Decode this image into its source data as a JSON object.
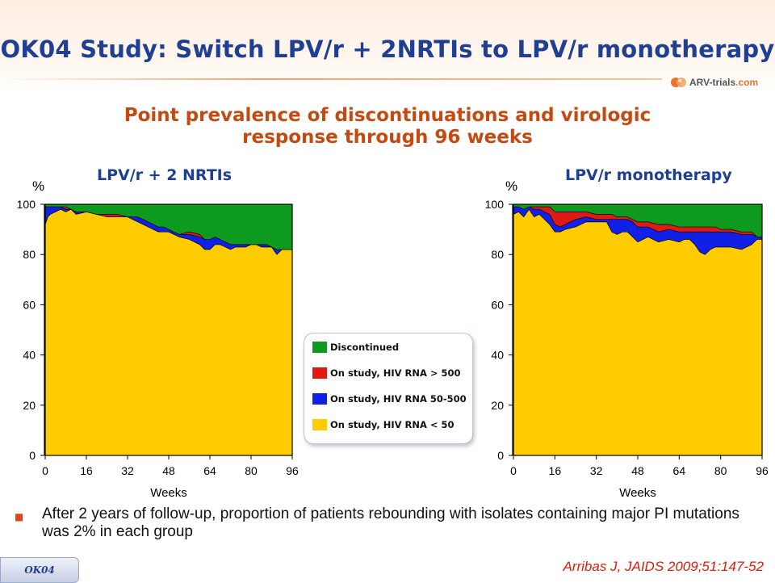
{
  "title": "OK04 Study: Switch LPV/r + 2NRTIs to LPV/r monotherapy",
  "logo": {
    "text_main": "ARV-trials",
    "text_accent": ".com"
  },
  "subtitle": {
    "line1": "Point prevalence of discontinuations and virologic",
    "line2": "response through 96 weeks"
  },
  "panels": [
    {
      "title": "LPV/r + 2 NRTIs"
    },
    {
      "title": "LPV/r monotherapy"
    }
  ],
  "legend": [
    {
      "label": "Discontinued",
      "color": "#0e9a1e"
    },
    {
      "label": "On study, HIV RNA > 500",
      "color": "#e01a12"
    },
    {
      "label": "On study, HIV RNA 50-500",
      "color": "#1020e6"
    },
    {
      "label": "On study, HIV RNA < 50",
      "color": "#ffcc00"
    }
  ],
  "bullet": "After 2 years of follow-up, proportion of patients rebounding with isolates containing major PI mutations was 2% in each group",
  "tag": "OK04",
  "citation": "Arribas J, JAIDS 2009;51:147-52",
  "chart_data": [
    {
      "type": "area",
      "title": "LPV/r + 2 NRTIs",
      "xlabel": "Weeks",
      "ylabel": "%",
      "xlim": [
        0,
        96
      ],
      "ylim": [
        0,
        100
      ],
      "xticks": [
        0,
        16,
        32,
        48,
        64,
        80,
        96
      ],
      "yticks": [
        0,
        20,
        40,
        60,
        80,
        100
      ],
      "stacked": true,
      "x": [
        0,
        1,
        2,
        4,
        6,
        8,
        10,
        12,
        16,
        20,
        24,
        28,
        32,
        36,
        38,
        40,
        42,
        44,
        46,
        48,
        52,
        56,
        60,
        62,
        64,
        66,
        68,
        70,
        72,
        74,
        76,
        78,
        80,
        82,
        84,
        86,
        88,
        90,
        92,
        96
      ],
      "series": [
        {
          "name": "On study, HIV RNA < 50",
          "values": [
            92,
            95,
            96,
            97,
            98,
            97,
            98,
            96,
            97,
            96,
            95,
            95,
            95,
            93,
            92,
            91,
            90,
            89,
            89,
            89,
            87,
            86,
            84,
            82,
            82,
            84,
            84,
            83,
            82,
            83,
            83,
            83,
            84,
            84,
            83,
            83,
            83,
            80,
            82,
            82
          ]
        },
        {
          "name": "On study, HIV RNA 50-500",
          "values": [
            7,
            4,
            3,
            2,
            1,
            1,
            0,
            1,
            0,
            0,
            0,
            0,
            0,
            2,
            2,
            2,
            2,
            2,
            2,
            1,
            1,
            2,
            3,
            4,
            4,
            3,
            2,
            2,
            2,
            1,
            1,
            1,
            0,
            0,
            1,
            1,
            0,
            2,
            0,
            0
          ]
        },
        {
          "name": "On study, HIV RNA > 500",
          "values": [
            0,
            0,
            0,
            0,
            0,
            1,
            0,
            0,
            0,
            0,
            1,
            1,
            0,
            0,
            0,
            0,
            0,
            0,
            0,
            0,
            0,
            1,
            1,
            0,
            0,
            0,
            0,
            0,
            0,
            0,
            0,
            0,
            0,
            0,
            0,
            0,
            0,
            0,
            0,
            0
          ]
        },
        {
          "name": "Discontinued",
          "values": [
            1,
            1,
            1,
            1,
            1,
            1,
            2,
            3,
            3,
            4,
            4,
            4,
            5,
            5,
            6,
            7,
            8,
            9,
            9,
            10,
            12,
            11,
            12,
            14,
            14,
            13,
            14,
            15,
            16,
            16,
            16,
            16,
            16,
            16,
            16,
            16,
            17,
            18,
            18,
            18
          ]
        }
      ]
    },
    {
      "type": "area",
      "title": "LPV/r monotherapy",
      "xlabel": "Weeks",
      "ylabel": "%",
      "xlim": [
        0,
        96
      ],
      "ylim": [
        0,
        100
      ],
      "xticks": [
        0,
        16,
        32,
        48,
        64,
        80,
        96
      ],
      "yticks": [
        0,
        20,
        40,
        60,
        80,
        100
      ],
      "stacked": true,
      "x": [
        0,
        2,
        4,
        6,
        8,
        10,
        12,
        14,
        16,
        18,
        20,
        24,
        28,
        32,
        36,
        38,
        40,
        42,
        44,
        46,
        48,
        50,
        52,
        56,
        60,
        64,
        66,
        68,
        70,
        72,
        74,
        76,
        78,
        80,
        84,
        88,
        92,
        94,
        96
      ],
      "series": [
        {
          "name": "On study, HIV RNA < 50",
          "values": [
            96,
            97,
            95,
            98,
            95,
            96,
            94,
            92,
            89,
            89,
            90,
            91,
            93,
            93,
            93,
            89,
            88,
            89,
            89,
            87,
            85,
            86,
            87,
            85,
            86,
            85,
            86,
            86,
            84,
            81,
            80,
            82,
            83,
            83,
            83,
            82,
            84,
            86,
            86
          ]
        },
        {
          "name": "On study, HIV RNA 50-500",
          "values": [
            3,
            2,
            3,
            1,
            3,
            2,
            3,
            4,
            3,
            2,
            2,
            3,
            2,
            1,
            1,
            5,
            6,
            5,
            5,
            6,
            6,
            5,
            4,
            4,
            4,
            4,
            3,
            3,
            5,
            8,
            9,
            7,
            6,
            6,
            6,
            6,
            4,
            1,
            1
          ]
        },
        {
          "name": "On study, HIV RNA > 500",
          "values": [
            0,
            0,
            0,
            0,
            1,
            1,
            2,
            3,
            5,
            6,
            5,
            3,
            2,
            2,
            2,
            2,
            1,
            1,
            1,
            1,
            2,
            2,
            2,
            3,
            2,
            2,
            2,
            2,
            2,
            2,
            2,
            2,
            2,
            1,
            1,
            1,
            1,
            0,
            0
          ]
        },
        {
          "name": "Discontinued",
          "values": [
            1,
            1,
            2,
            1,
            1,
            1,
            1,
            1,
            3,
            3,
            3,
            3,
            3,
            4,
            4,
            4,
            5,
            5,
            5,
            6,
            7,
            7,
            7,
            8,
            8,
            9,
            9,
            9,
            9,
            9,
            9,
            9,
            9,
            10,
            10,
            11,
            11,
            13,
            13
          ]
        }
      ]
    }
  ]
}
